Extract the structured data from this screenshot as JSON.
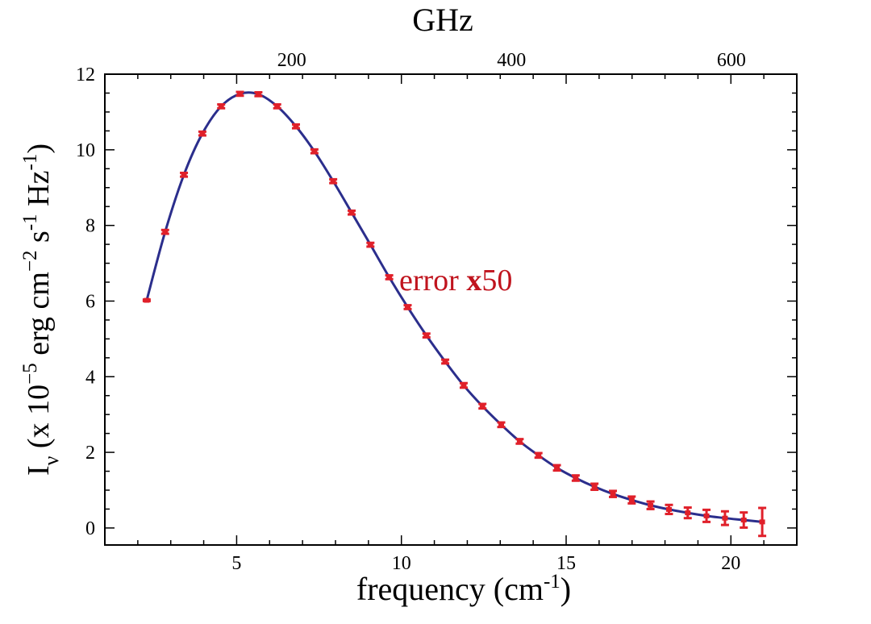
{
  "chart_data": {
    "type": "line",
    "title": "",
    "top_axis_label": "GHz",
    "xlabel_main": "frequency (cm",
    "xlabel_sup": "-1",
    "xlabel_close": ")",
    "ylabel_parts": {
      "i": "I",
      "nu": "ν",
      "a": " (x 10",
      "b": "−5",
      "c": " erg cm",
      "d": "−2",
      "e": " s",
      "f": "-1",
      "g": " Hz",
      "h": "-1",
      "z": ")"
    },
    "annotation": {
      "pre": "error ",
      "bold": "x",
      "post": "50"
    },
    "xlim": [
      1.0,
      22.0
    ],
    "ylim": [
      -0.45,
      12.0
    ],
    "x_ticks": [
      5,
      10,
      15,
      20
    ],
    "y_ticks": [
      0,
      2,
      4,
      6,
      8,
      10,
      12
    ],
    "top_ticks_ghz": [
      200,
      400,
      600
    ],
    "ghz_per_cm": 29.9792458,
    "grid": false,
    "line_color": "#2b2e8c",
    "marker_color": "#e0202a",
    "annotation_color": "#c0141e",
    "series": [
      {
        "x": [
          2.27,
          2.83,
          3.4,
          3.96,
          4.53,
          5.1,
          5.66,
          6.23,
          6.8,
          7.36,
          7.93,
          8.49,
          9.06,
          9.63,
          10.19,
          10.76,
          11.33,
          11.89,
          12.46,
          13.03,
          13.59,
          14.16,
          14.72,
          15.29,
          15.86,
          16.42,
          16.99,
          17.56,
          18.12,
          18.69,
          19.26,
          19.82,
          20.39,
          20.95
        ],
        "y": [
          6.02,
          7.83,
          9.34,
          10.43,
          11.15,
          11.48,
          11.47,
          11.15,
          10.62,
          9.96,
          9.17,
          8.34,
          7.49,
          6.63,
          5.84,
          5.09,
          4.4,
          3.77,
          3.22,
          2.73,
          2.29,
          1.92,
          1.59,
          1.32,
          1.09,
          0.9,
          0.74,
          0.6,
          0.49,
          0.4,
          0.32,
          0.26,
          0.21,
          0.16
        ],
        "error": [
          0.02,
          0.05,
          0.05,
          0.05,
          0.05,
          0.05,
          0.05,
          0.05,
          0.05,
          0.05,
          0.05,
          0.05,
          0.05,
          0.05,
          0.05,
          0.05,
          0.05,
          0.06,
          0.06,
          0.06,
          0.06,
          0.06,
          0.07,
          0.07,
          0.08,
          0.08,
          0.09,
          0.1,
          0.12,
          0.14,
          0.16,
          0.18,
          0.2,
          0.37
        ]
      }
    ]
  }
}
